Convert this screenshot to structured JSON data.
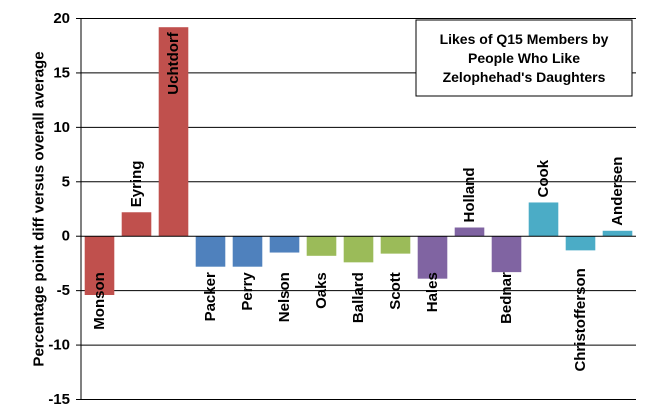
{
  "chart_data": {
    "type": "bar",
    "title": [
      "Likes of Q15 Members by",
      "People Who Like",
      "Zelophehad's Daughters"
    ],
    "xlabel": "",
    "ylabel": "Percentage point diff versus overall average",
    "ylim": [
      -15,
      20
    ],
    "yticks": [
      "20",
      "15",
      "10",
      "5",
      "0",
      "-5",
      "-10",
      "-15"
    ],
    "grid": true,
    "legend": "none",
    "categories": [
      "Monson",
      "Eyring",
      "Uchtdorf",
      "Packer",
      "Perry",
      "Nelson",
      "Oaks",
      "Ballard",
      "Scott",
      "Hales",
      "Holland",
      "Bednar",
      "Cook",
      "Christofferson",
      "Andersen"
    ],
    "values": [
      -5.4,
      2.2,
      19.2,
      -2.8,
      -2.8,
      -1.5,
      -1.8,
      -2.4,
      -1.6,
      -3.9,
      0.8,
      -3.3,
      3.1,
      -1.3,
      0.5
    ],
    "colors": [
      "#c0504d",
      "#c0504d",
      "#c0504d",
      "#4f81bd",
      "#4f81bd",
      "#4f81bd",
      "#9bbb59",
      "#9bbb59",
      "#9bbb59",
      "#8064a2",
      "#8064a2",
      "#8064a2",
      "#4bacc6",
      "#4bacc6",
      "#4bacc6"
    ]
  }
}
